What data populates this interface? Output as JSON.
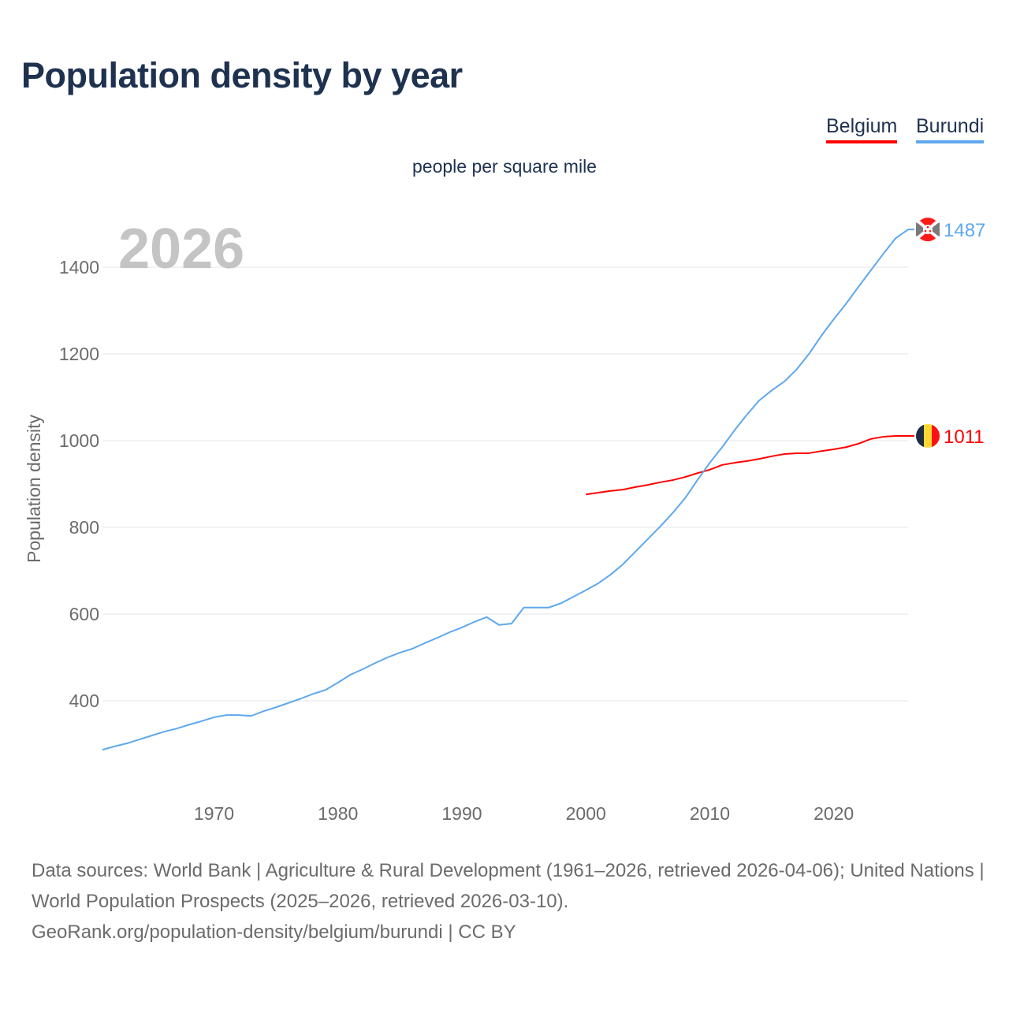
{
  "title": "Population density by year",
  "legend": [
    "Belgium",
    "Burundi"
  ],
  "unit": "people per square mile",
  "footer": {
    "sources": "Data sources: World Bank | Agriculture & Rural Development (1961–2026, retrieved 2026-04-06); United Nations | World Population Prospects (2025–2026, retrieved 2026-03-10).",
    "credit": "GeoRank.org/population-density/belgium/burundi | CC BY"
  },
  "chart_data": {
    "type": "line",
    "title": "Population density by year",
    "subtitle": "people per square mile",
    "xlabel": "",
    "ylabel": "Population density",
    "year_watermark": "2026",
    "xlim": [
      1961,
      2026
    ],
    "ylim": [
      180,
      1500
    ],
    "xticks": [
      1970,
      1980,
      1990,
      2000,
      2010,
      2020
    ],
    "yticks": [
      400,
      600,
      800,
      1000,
      1200,
      1400
    ],
    "grid": true,
    "legend_position": "top-right",
    "series": [
      {
        "name": "Belgium",
        "color": "#ff0000",
        "end_label": "1011",
        "x": [
          2000,
          2001,
          2002,
          2003,
          2004,
          2005,
          2006,
          2007,
          2008,
          2009,
          2010,
          2011,
          2012,
          2013,
          2014,
          2015,
          2016,
          2017,
          2018,
          2019,
          2020,
          2021,
          2022,
          2023,
          2024,
          2025,
          2026
        ],
        "values": [
          876,
          880,
          884,
          887,
          893,
          898,
          904,
          909,
          916,
          925,
          933,
          944,
          949,
          953,
          958,
          964,
          969,
          971,
          971,
          976,
          980,
          985,
          993,
          1004,
          1009,
          1011,
          1011
        ]
      },
      {
        "name": "Burundi",
        "color": "#5ea8ee",
        "end_label": "1487",
        "x": [
          1961,
          1962,
          1963,
          1964,
          1965,
          1966,
          1967,
          1968,
          1969,
          1970,
          1971,
          1972,
          1973,
          1974,
          1975,
          1976,
          1977,
          1978,
          1979,
          1980,
          1981,
          1982,
          1983,
          1984,
          1985,
          1986,
          1987,
          1988,
          1989,
          1990,
          1991,
          1992,
          1993,
          1994,
          1995,
          1996,
          1997,
          1998,
          1999,
          2000,
          2001,
          2002,
          2003,
          2004,
          2005,
          2006,
          2007,
          2008,
          2009,
          2010,
          2011,
          2012,
          2013,
          2014,
          2015,
          2016,
          2017,
          2018,
          2019,
          2020,
          2021,
          2022,
          2023,
          2024,
          2025,
          2026
        ],
        "values": [
          287,
          295,
          302,
          311,
          320,
          329,
          336,
          345,
          353,
          362,
          367,
          367,
          365,
          376,
          385,
          395,
          405,
          416,
          425,
          442,
          460,
          473,
          487,
          500,
          511,
          520,
          533,
          545,
          558,
          569,
          582,
          593,
          575,
          578,
          615,
          615,
          615,
          625,
          640,
          655,
          671,
          691,
          715,
          744,
          773,
          802,
          833,
          867,
          909,
          949,
          985,
          1024,
          1060,
          1093,
          1116,
          1136,
          1164,
          1200,
          1242,
          1280,
          1316,
          1355,
          1393,
          1431,
          1467,
          1487
        ]
      }
    ]
  }
}
